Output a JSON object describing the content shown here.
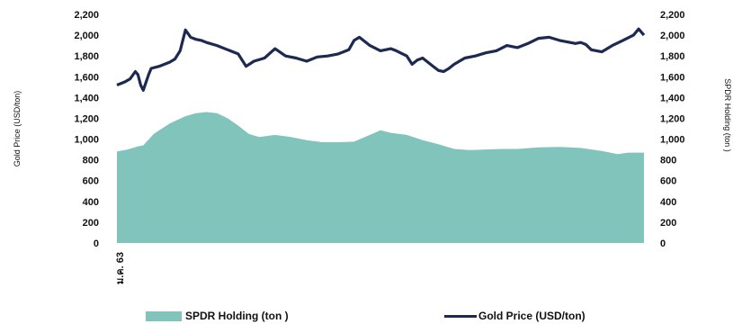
{
  "chart_data": {
    "type": "area+line",
    "y_left_label": "Gold Price (USD/ton)",
    "y_right_label": "SPDR Holding (ton )",
    "yticks": [
      0,
      200,
      400,
      600,
      800,
      1000,
      1200,
      1400,
      1600,
      1800,
      2000,
      2200
    ],
    "yticks_text": [
      "0",
      "200",
      "400",
      "600",
      "800",
      "1,000",
      "1,200",
      "1,400",
      "1,600",
      "1,800",
      "2,000",
      "2,200"
    ],
    "ylim": [
      0,
      2200
    ],
    "x_tick_label": "ม.ค. 63",
    "legend_placement": "bottom",
    "grid": false,
    "series": [
      {
        "name": "SPDR Holding (ton )",
        "kind": "area",
        "color": "#80c4bb",
        "x": [
          0,
          0.02,
          0.04,
          0.05,
          0.07,
          0.1,
          0.13,
          0.15,
          0.17,
          0.19,
          0.21,
          0.23,
          0.25,
          0.27,
          0.3,
          0.33,
          0.36,
          0.39,
          0.42,
          0.45,
          0.48,
          0.5,
          0.52,
          0.55,
          0.58,
          0.61,
          0.64,
          0.67,
          0.7,
          0.73,
          0.76,
          0.8,
          0.84,
          0.88,
          0.92,
          0.95,
          0.97,
          1.0
        ],
        "values": [
          880,
          900,
          930,
          940,
          1050,
          1150,
          1220,
          1250,
          1260,
          1250,
          1200,
          1130,
          1050,
          1020,
          1040,
          1020,
          990,
          970,
          970,
          975,
          1040,
          1085,
          1060,
          1040,
          990,
          950,
          905,
          895,
          900,
          905,
          905,
          920,
          925,
          915,
          885,
          855,
          870,
          870
        ]
      },
      {
        "name": "Gold Price (USD/ton)",
        "kind": "line",
        "color": "#1c2a52",
        "x": [
          0,
          0.015,
          0.025,
          0.035,
          0.04,
          0.045,
          0.05,
          0.06,
          0.065,
          0.08,
          0.1,
          0.11,
          0.12,
          0.13,
          0.14,
          0.15,
          0.16,
          0.17,
          0.19,
          0.21,
          0.23,
          0.245,
          0.26,
          0.28,
          0.3,
          0.32,
          0.34,
          0.36,
          0.38,
          0.4,
          0.42,
          0.44,
          0.45,
          0.46,
          0.48,
          0.5,
          0.52,
          0.53,
          0.55,
          0.56,
          0.57,
          0.58,
          0.6,
          0.61,
          0.62,
          0.63,
          0.64,
          0.66,
          0.68,
          0.7,
          0.72,
          0.74,
          0.76,
          0.78,
          0.8,
          0.82,
          0.84,
          0.86,
          0.87,
          0.88,
          0.89,
          0.9,
          0.92,
          0.94,
          0.96,
          0.98,
          0.99,
          1.0
        ],
        "values": [
          1520,
          1550,
          1580,
          1650,
          1620,
          1520,
          1470,
          1620,
          1680,
          1700,
          1740,
          1770,
          1850,
          2050,
          1980,
          1960,
          1950,
          1930,
          1900,
          1860,
          1820,
          1700,
          1750,
          1780,
          1870,
          1800,
          1780,
          1750,
          1790,
          1800,
          1820,
          1860,
          1950,
          1980,
          1900,
          1850,
          1870,
          1850,
          1800,
          1720,
          1760,
          1780,
          1700,
          1660,
          1650,
          1680,
          1720,
          1780,
          1800,
          1830,
          1850,
          1900,
          1880,
          1920,
          1970,
          1980,
          1950,
          1930,
          1920,
          1930,
          1910,
          1860,
          1840,
          1900,
          1950,
          2000,
          2060,
          2000
        ]
      }
    ]
  }
}
